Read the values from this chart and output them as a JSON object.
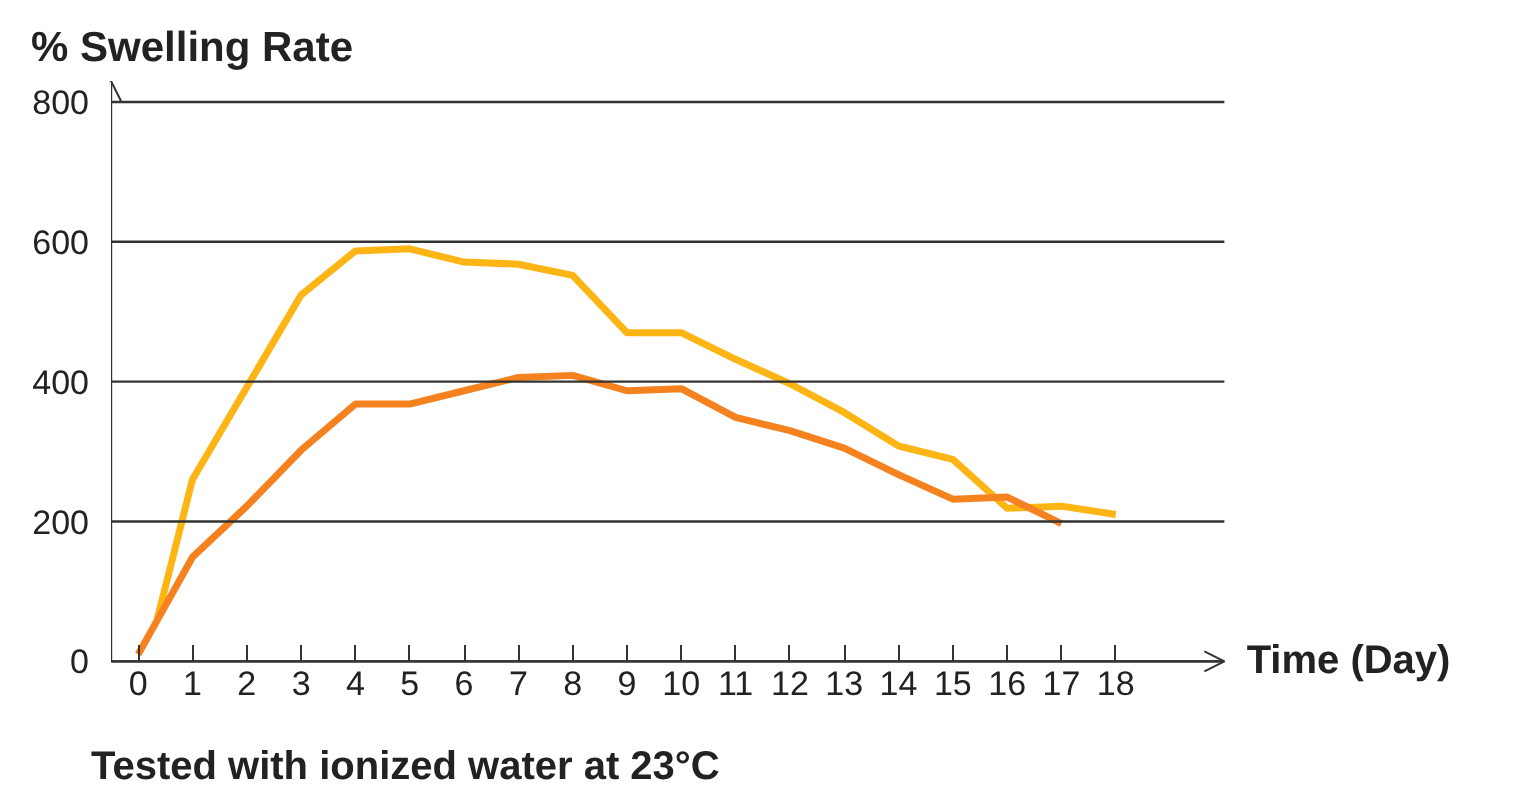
{
  "chart_data": {
    "type": "line",
    "ylabel": "% Swelling Rate",
    "xlabel": "Time (Day)",
    "annotations": [
      "Tested with ionized water at 23°C"
    ],
    "series": [
      {
        "color": "#fdb515",
        "x": [
          0.35,
          1,
          3,
          4,
          5,
          6,
          7,
          8,
          9,
          10,
          11,
          12,
          13,
          14,
          15,
          16,
          17,
          18
        ],
        "values": [
          60,
          260,
          524,
          587,
          590,
          571,
          568,
          552,
          470,
          470,
          432,
          397,
          356,
          308,
          289,
          219,
          222,
          210
        ]
      },
      {
        "color": "#f5821f",
        "x": [
          0,
          1,
          2,
          3,
          4,
          5,
          6,
          7,
          8,
          9,
          10,
          11,
          12,
          13,
          14,
          15,
          16,
          17
        ],
        "values": [
          10,
          149,
          222,
          302,
          368,
          368,
          387,
          406,
          409,
          387,
          390,
          349,
          330,
          305,
          267,
          232,
          235,
          197
        ]
      }
    ],
    "xlim": [
      -0.5,
      20
    ],
    "ylim": [
      0,
      830
    ],
    "xticks": [
      0,
      1,
      2,
      3,
      4,
      5,
      6,
      7,
      8,
      9,
      10,
      11,
      12,
      13,
      14,
      15,
      16,
      17,
      18
    ],
    "yticks": [
      0,
      200,
      400,
      600,
      800
    ],
    "grid": "y",
    "marker": "none",
    "line_style": "solid"
  }
}
